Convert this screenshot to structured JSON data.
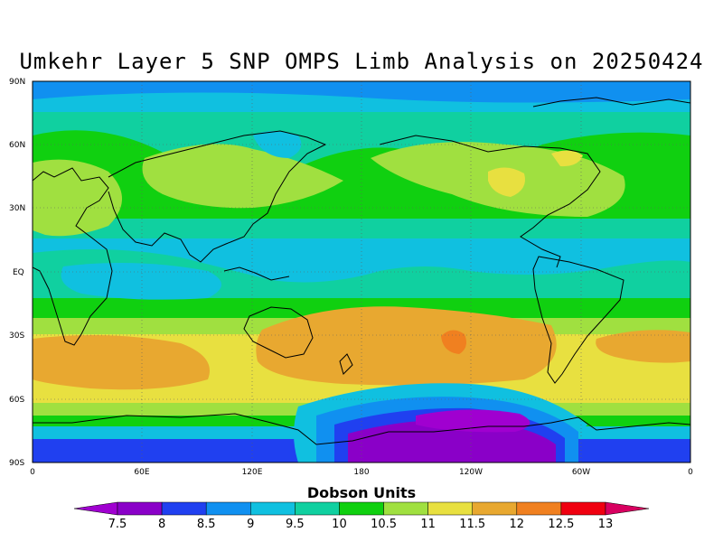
{
  "title": "Umkehr Layer 5 SNP OMPS Limb Analysis on 20250424",
  "colorbar": {
    "title": "Dobson Units",
    "labels": [
      "7.5",
      "8",
      "8.5",
      "9",
      "9.5",
      "10",
      "10.5",
      "11",
      "11.5",
      "12",
      "12.5",
      "13"
    ],
    "colors": [
      "#a000d0",
      "#8a00c8",
      "#2040f0",
      "#1090f0",
      "#10c0e0",
      "#10d0a0",
      "#10d010",
      "#a0e040",
      "#e8e040",
      "#e8a830",
      "#f08020",
      "#f00010",
      "#d80060"
    ]
  },
  "axes": {
    "lat_labels": [
      "90N",
      "60N",
      "30N",
      "EQ",
      "30S",
      "60S",
      "90S"
    ],
    "lon_labels": [
      "0",
      "60E",
      "120E",
      "180",
      "120W",
      "60W",
      "0"
    ]
  }
}
